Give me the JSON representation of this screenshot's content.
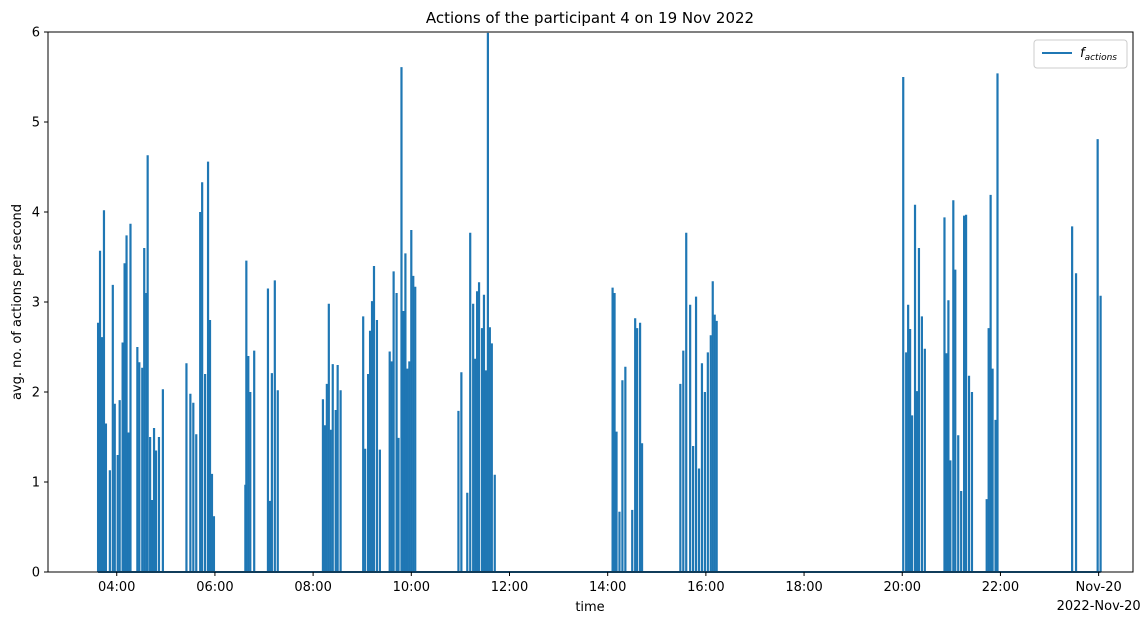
{
  "chart_data": {
    "type": "line",
    "title": "Actions of the participant 4 on 19 Nov 2022",
    "xlabel": "time",
    "ylabel": "avg. no. of actions per second",
    "ylim": [
      0,
      6
    ],
    "xlim_hours": [
      2.6,
      24.7
    ],
    "y_ticks": [
      "0",
      "1",
      "2",
      "3",
      "4",
      "5",
      "6"
    ],
    "x_ticks": [
      {
        "hour": 4,
        "label": "04:00"
      },
      {
        "hour": 6,
        "label": "06:00"
      },
      {
        "hour": 8,
        "label": "08:00"
      },
      {
        "hour": 10,
        "label": "10:00"
      },
      {
        "hour": 12,
        "label": "12:00"
      },
      {
        "hour": 14,
        "label": "14:00"
      },
      {
        "hour": 16,
        "label": "16:00"
      },
      {
        "hour": 18,
        "label": "18:00"
      },
      {
        "hour": 20,
        "label": "20:00"
      },
      {
        "hour": 22,
        "label": "22:00"
      },
      {
        "hour": 24,
        "label": "Nov-20"
      }
    ],
    "x_offset_label": "2022-Nov-20",
    "grid": false,
    "legend_position": "top-right",
    "series": [
      {
        "name": "f_actions",
        "color": "#1f77b4",
        "spikes": [
          [
            3.62,
            2.77
          ],
          [
            3.66,
            3.57
          ],
          [
            3.7,
            2.61
          ],
          [
            3.74,
            4.02
          ],
          [
            3.78,
            1.65
          ],
          [
            3.86,
            1.13
          ],
          [
            3.92,
            3.19
          ],
          [
            3.96,
            1.87
          ],
          [
            4.02,
            1.3
          ],
          [
            4.06,
            1.91
          ],
          [
            4.12,
            2.55
          ],
          [
            4.16,
            3.43
          ],
          [
            4.2,
            3.74
          ],
          [
            4.24,
            1.55
          ],
          [
            4.28,
            3.87
          ],
          [
            4.42,
            2.5
          ],
          [
            4.46,
            2.33
          ],
          [
            4.52,
            2.27
          ],
          [
            4.56,
            3.6
          ],
          [
            4.6,
            3.1
          ],
          [
            4.63,
            4.63
          ],
          [
            4.68,
            1.5
          ],
          [
            4.72,
            0.8
          ],
          [
            4.76,
            1.6
          ],
          [
            4.8,
            1.35
          ],
          [
            4.86,
            1.5
          ],
          [
            4.94,
            2.03
          ],
          [
            5.42,
            2.32
          ],
          [
            5.5,
            1.98
          ],
          [
            5.56,
            1.88
          ],
          [
            5.62,
            1.53
          ],
          [
            5.7,
            4.0
          ],
          [
            5.74,
            4.33
          ],
          [
            5.8,
            2.2
          ],
          [
            5.86,
            4.56
          ],
          [
            5.9,
            2.8
          ],
          [
            5.94,
            1.09
          ],
          [
            5.98,
            0.62
          ],
          [
            6.62,
            0.97
          ],
          [
            6.64,
            3.46
          ],
          [
            6.68,
            2.4
          ],
          [
            6.72,
            2.0
          ],
          [
            6.8,
            2.46
          ],
          [
            7.08,
            3.15
          ],
          [
            7.12,
            0.79
          ],
          [
            7.16,
            2.21
          ],
          [
            7.22,
            3.24
          ],
          [
            7.28,
            2.02
          ],
          [
            8.2,
            1.92
          ],
          [
            8.24,
            1.63
          ],
          [
            8.28,
            2.09
          ],
          [
            8.32,
            2.98
          ],
          [
            8.36,
            1.58
          ],
          [
            8.4,
            2.31
          ],
          [
            8.46,
            1.8
          ],
          [
            8.5,
            2.3
          ],
          [
            8.56,
            2.02
          ],
          [
            9.02,
            2.84
          ],
          [
            9.06,
            1.37
          ],
          [
            9.12,
            2.2
          ],
          [
            9.16,
            2.68
          ],
          [
            9.2,
            3.01
          ],
          [
            9.24,
            3.4
          ],
          [
            9.3,
            2.8
          ],
          [
            9.36,
            1.36
          ],
          [
            9.56,
            2.45
          ],
          [
            9.6,
            2.34
          ],
          [
            9.64,
            3.34
          ],
          [
            9.7,
            3.1
          ],
          [
            9.74,
            1.49
          ],
          [
            9.8,
            5.61
          ],
          [
            9.84,
            2.9
          ],
          [
            9.88,
            3.54
          ],
          [
            9.92,
            2.26
          ],
          [
            9.96,
            2.34
          ],
          [
            10.0,
            3.8
          ],
          [
            10.04,
            3.29
          ],
          [
            10.08,
            3.17
          ],
          [
            10.96,
            1.79
          ],
          [
            11.02,
            2.22
          ],
          [
            11.14,
            0.88
          ],
          [
            11.2,
            3.77
          ],
          [
            11.26,
            2.98
          ],
          [
            11.3,
            2.37
          ],
          [
            11.34,
            3.12
          ],
          [
            11.38,
            3.22
          ],
          [
            11.44,
            2.71
          ],
          [
            11.48,
            3.08
          ],
          [
            11.52,
            2.24
          ],
          [
            11.56,
            5.99
          ],
          [
            11.6,
            2.72
          ],
          [
            11.64,
            2.54
          ],
          [
            11.7,
            1.08
          ],
          [
            14.1,
            3.16
          ],
          [
            14.14,
            3.1
          ],
          [
            14.18,
            1.56
          ],
          [
            14.24,
            0.67
          ],
          [
            14.3,
            2.13
          ],
          [
            14.36,
            2.28
          ],
          [
            14.5,
            0.69
          ],
          [
            14.56,
            2.82
          ],
          [
            14.6,
            2.71
          ],
          [
            14.66,
            2.77
          ],
          [
            14.7,
            1.43
          ],
          [
            15.48,
            2.09
          ],
          [
            15.54,
            2.46
          ],
          [
            15.6,
            3.77
          ],
          [
            15.68,
            2.97
          ],
          [
            15.74,
            1.4
          ],
          [
            15.8,
            3.06
          ],
          [
            15.86,
            1.15
          ],
          [
            15.92,
            2.32
          ],
          [
            15.98,
            2.0
          ],
          [
            16.04,
            2.44
          ],
          [
            16.1,
            2.63
          ],
          [
            16.14,
            3.23
          ],
          [
            16.18,
            2.86
          ],
          [
            16.22,
            2.79
          ],
          [
            20.02,
            5.5
          ],
          [
            20.08,
            2.44
          ],
          [
            20.12,
            2.97
          ],
          [
            20.16,
            2.7
          ],
          [
            20.2,
            1.74
          ],
          [
            20.26,
            4.08
          ],
          [
            20.3,
            2.01
          ],
          [
            20.34,
            3.6
          ],
          [
            20.4,
            2.84
          ],
          [
            20.46,
            2.48
          ],
          [
            20.86,
            3.94
          ],
          [
            20.9,
            2.43
          ],
          [
            20.94,
            3.02
          ],
          [
            20.98,
            1.24
          ],
          [
            21.04,
            4.13
          ],
          [
            21.08,
            3.36
          ],
          [
            21.14,
            1.52
          ],
          [
            21.2,
            0.9
          ],
          [
            21.26,
            3.96
          ],
          [
            21.3,
            3.97
          ],
          [
            21.36,
            2.18
          ],
          [
            21.42,
            2.0
          ],
          [
            21.72,
            0.81
          ],
          [
            21.76,
            2.71
          ],
          [
            21.8,
            4.19
          ],
          [
            21.84,
            2.26
          ],
          [
            21.9,
            1.69
          ],
          [
            21.94,
            5.54
          ],
          [
            23.46,
            3.84
          ],
          [
            23.54,
            3.32
          ],
          [
            23.98,
            4.81
          ],
          [
            24.04,
            3.07
          ]
        ]
      }
    ]
  }
}
